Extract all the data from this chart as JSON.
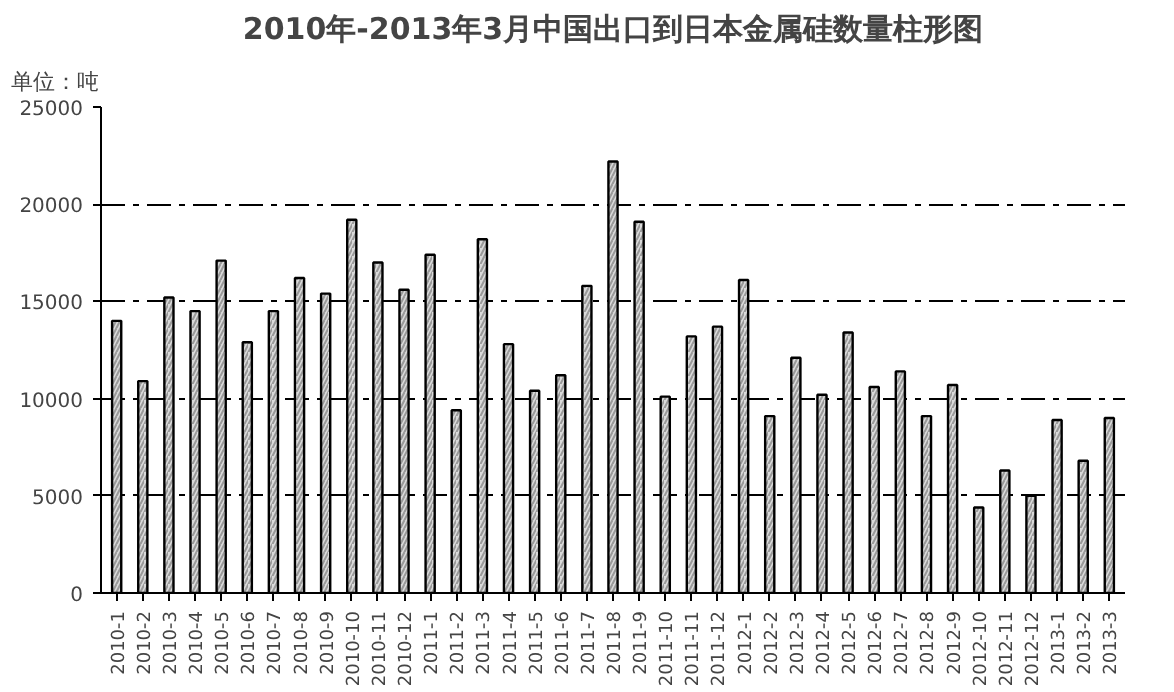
{
  "chart_data": {
    "type": "bar",
    "title": "2010年-2013年3月中国出口到日本金属硅数量柱形图",
    "annotations": [
      "单位：吨"
    ],
    "categories": [
      "2010-1",
      "2010-2",
      "2010-3",
      "2010-4",
      "2010-5",
      "2010-6",
      "2010-7",
      "2010-8",
      "2010-9",
      "2010-10",
      "2010-11",
      "2010-12",
      "2011-1",
      "2011-2",
      "2011-3",
      "2011-4",
      "2011-5",
      "2011-6",
      "2011-7",
      "2011-8",
      "2011-9",
      "2011-10",
      "2011-11",
      "2011-12",
      "2012-1",
      "2012-2",
      "2012-3",
      "2012-4",
      "2012-5",
      "2012-6",
      "2012-7",
      "2012-8",
      "2012-9",
      "2012-10",
      "2012-11",
      "2012-12",
      "2013-1",
      "2013-2",
      "2013-3"
    ],
    "values": [
      14000,
      10900,
      15200,
      14500,
      17100,
      12900,
      14500,
      16200,
      15400,
      19200,
      17000,
      15600,
      17400,
      9400,
      18200,
      12800,
      10400,
      11200,
      15800,
      22200,
      19100,
      10100,
      13200,
      13700,
      16100,
      9100,
      12100,
      10200,
      13400,
      10600,
      11400,
      9100,
      10700,
      4400,
      6300,
      5000,
      8900,
      6800,
      9000
    ],
    "color": "#d9d9d9",
    "ylim": [
      0,
      25000
    ],
    "yticks": [
      0,
      5000,
      10000,
      15000,
      20000,
      25000
    ],
    "grid": "y"
  }
}
